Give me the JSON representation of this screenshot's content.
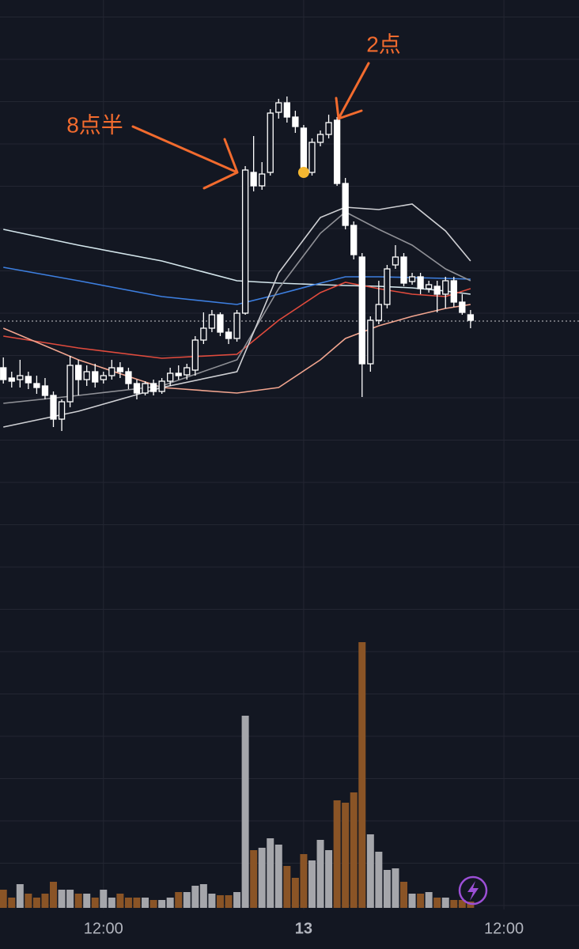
{
  "chart_data": {
    "type": "candlestick",
    "annotations": [
      "8点半",
      "2点"
    ],
    "x": [
      0,
      1,
      2,
      3,
      4,
      5,
      6,
      7,
      8,
      9,
      10,
      11,
      12,
      13,
      14,
      15,
      16,
      17,
      18,
      19,
      20,
      21,
      22,
      23,
      24,
      25,
      26,
      27,
      28,
      29,
      30,
      31,
      32,
      33,
      34,
      35,
      36,
      37,
      38,
      39,
      40,
      41,
      42,
      43,
      44,
      45,
      46,
      47,
      48,
      49,
      50,
      51,
      52,
      53,
      54,
      55,
      56
    ],
    "open": [
      135,
      122,
      120,
      124,
      115,
      112,
      100,
      70,
      92,
      138,
      120,
      130,
      120,
      125,
      135,
      130,
      115,
      103,
      115,
      105,
      118,
      128,
      126,
      132,
      170,
      185,
      202,
      180,
      172,
      204,
      382,
      365,
      382,
      458,
      470,
      452,
      438,
      382,
      420,
      430,
      448,
      368,
      315,
      275,
      140,
      195,
      215,
      265,
      275,
      244,
      250,
      235,
      238,
      228,
      245,
      218,
      202
    ],
    "high": [
      148,
      130,
      145,
      130,
      125,
      122,
      105,
      95,
      150,
      145,
      138,
      140,
      130,
      145,
      142,
      135,
      120,
      118,
      120,
      122,
      135,
      138,
      140,
      175,
      205,
      208,
      205,
      185,
      208,
      390,
      428,
      395,
      462,
      475,
      478,
      460,
      442,
      425,
      435,
      455,
      452,
      375,
      320,
      280,
      200,
      245,
      265,
      290,
      280,
      255,
      255,
      245,
      245,
      250,
      250,
      228,
      208
    ],
    "low": [
      115,
      110,
      110,
      108,
      102,
      95,
      60,
      55,
      85,
      100,
      112,
      110,
      115,
      120,
      122,
      108,
      95,
      100,
      100,
      102,
      112,
      120,
      120,
      125,
      165,
      180,
      175,
      165,
      168,
      202,
      358,
      360,
      378,
      450,
      445,
      432,
      378,
      378,
      415,
      425,
      365,
      310,
      272,
      98,
      130,
      190,
      210,
      260,
      238,
      240,
      228,
      230,
      205,
      210,
      212,
      202,
      185
    ],
    "close": [
      120,
      118,
      125,
      116,
      110,
      100,
      70,
      92,
      138,
      120,
      130,
      117,
      125,
      135,
      130,
      115,
      103,
      115,
      105,
      118,
      128,
      125,
      135,
      170,
      185,
      202,
      180,
      172,
      204,
      385,
      365,
      380,
      457,
      470,
      452,
      440,
      382,
      420,
      430,
      445,
      368,
      315,
      278,
      140,
      195,
      215,
      260,
      275,
      242,
      250,
      235,
      240,
      228,
      245,
      218,
      205,
      195
    ],
    "volume": [
      23,
      13,
      30,
      18,
      13,
      18,
      33,
      23,
      23,
      18,
      18,
      13,
      23,
      13,
      18,
      13,
      13,
      13,
      10,
      10,
      13,
      20,
      20,
      28,
      30,
      18,
      16,
      16,
      20,
      243,
      73,
      76,
      88,
      80,
      53,
      38,
      68,
      60,
      86,
      73,
      136,
      133,
      146,
      336,
      93,
      71,
      48,
      50,
      33,
      18,
      18,
      20,
      13,
      13,
      10,
      10,
      8
    ],
    "up_color": "#ffffff",
    "down_color": "#ffffff",
    "volume_up_color": "#a5a6ab",
    "volume_down_color": "#8a5426",
    "marker_color": "#f4b731",
    "last_price": 194,
    "lines": [
      {
        "color": "#d4e6ec",
        "x": [
          0,
          9,
          19,
          28,
          33,
          38,
          41,
          45,
          49,
          53,
          56
        ],
        "values": [
          310,
          290,
          270,
          245,
          242,
          240,
          239,
          238,
          236,
          232,
          228
        ]
      },
      {
        "color": "#3d7fe0",
        "x": [
          0,
          9,
          19,
          28,
          33,
          38,
          41,
          45,
          49,
          53,
          56
        ],
        "values": [
          262,
          245,
          225,
          215,
          228,
          242,
          250,
          250,
          249,
          248,
          247
        ]
      },
      {
        "color": "#e14b3d",
        "x": [
          0,
          9,
          19,
          28,
          33,
          38,
          41,
          45,
          49,
          53,
          56
        ],
        "values": [
          175,
          160,
          147,
          152,
          195,
          230,
          243,
          235,
          228,
          225,
          235
        ]
      },
      {
        "color": "#f2a58f",
        "x": [
          0,
          9,
          19,
          28,
          33,
          38,
          41,
          45,
          49,
          53,
          56
        ],
        "values": [
          185,
          145,
          110,
          103,
          110,
          145,
          172,
          188,
          200,
          210,
          215
        ]
      },
      {
        "color": "#8f9096",
        "x": [
          0,
          9,
          19,
          28,
          33,
          38,
          41,
          45,
          49,
          53,
          56
        ],
        "values": [
          90,
          100,
          112,
          145,
          235,
          305,
          332,
          310,
          290,
          260,
          245
        ]
      },
      {
        "color": "#cfd0d4",
        "x": [
          0,
          9,
          19,
          28,
          33,
          38,
          41,
          45,
          49,
          53,
          56
        ],
        "values": [
          60,
          80,
          110,
          130,
          255,
          325,
          338,
          335,
          342,
          308,
          270
        ]
      }
    ],
    "xlim": [
      -0.4,
      69
    ],
    "xticks": [
      {
        "value": 12,
        "label": "12:00"
      },
      {
        "value": 36,
        "label": "13"
      },
      {
        "value": 60,
        "label": "12:00"
      }
    ],
    "ylim": [
      0,
      600
    ],
    "volume_lim": [
      0,
      400
    ]
  }
}
